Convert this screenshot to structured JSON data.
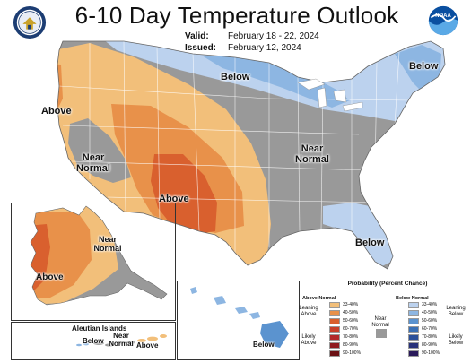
{
  "header": {
    "title": "6-10 Day Temperature Outlook",
    "valid_label": "Valid:",
    "valid_value": "February 18 - 22, 2024",
    "issued_label": "Issued:",
    "issued_value": "February 12, 2024",
    "left_logo_icon": "commerce-seal-icon",
    "right_logo_icon": "noaa-logo-icon",
    "noaa_logo_text": "NOAA"
  },
  "conus_labels": {
    "above_west": "Above",
    "near_normal_west": "Near Normal",
    "above_southwest": "Above",
    "below_north": "Below",
    "below_northeast": "Below",
    "near_normal_east": "Near Normal",
    "below_florida": "Below"
  },
  "alaska_labels": {
    "near_normal": "Near Normal",
    "above": "Above"
  },
  "aleutian": {
    "title": "Aleutian Islands",
    "below": "Below",
    "near_normal": "Near Normal",
    "above": "Above"
  },
  "hawaii": {
    "below": "Below"
  },
  "legend": {
    "title": "Probability (Percent Chance)",
    "above_header": "Above Normal",
    "below_header": "Below Normal",
    "above_ranges": [
      "33-40%",
      "40-50%",
      "50-60%",
      "60-70%",
      "70-80%",
      "80-90%",
      "90-100%"
    ],
    "below_ranges": [
      "33-40%",
      "40-50%",
      "50-60%",
      "60-70%",
      "70-80%",
      "80-90%",
      "90-100%"
    ],
    "above_colors": [
      "#f2bf7a",
      "#e8914a",
      "#d9602e",
      "#c8402a",
      "#b2282a",
      "#8f1b1f",
      "#6b1114"
    ],
    "below_colors": [
      "#bcd2ee",
      "#8db6e2",
      "#5b93cf",
      "#3a70b5",
      "#2a4f99",
      "#28327a",
      "#2a1a5a"
    ],
    "near_normal_color": "#999999",
    "near_normal_label": "Near Normal",
    "leaning_above": "Leaning Above",
    "likely_above": "Likely Above",
    "leaning_below": "Leaning Below",
    "likely_below": "Likely Below"
  },
  "colors": {
    "near_normal": "#999999",
    "state_lines": "#ffffff",
    "border": "#555555"
  }
}
